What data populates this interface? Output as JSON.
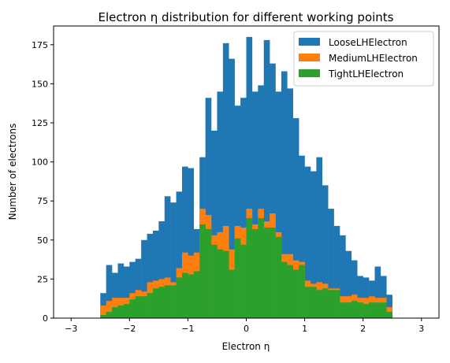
{
  "chart_data": {
    "type": "histogram",
    "title": "Electron η distribution for different working points",
    "xlabel": "Electron η",
    "ylabel": "Number of electrons",
    "xlim": [
      -3.3,
      3.3
    ],
    "ylim": [
      0,
      187
    ],
    "xticks": [
      -3,
      -2,
      -1,
      0,
      1,
      2,
      3
    ],
    "xtick_labels": [
      "−3",
      "−2",
      "−1",
      "0",
      "1",
      "2",
      "3"
    ],
    "yticks": [
      0,
      25,
      50,
      75,
      100,
      125,
      150,
      175
    ],
    "ytick_labels": [
      "0",
      "25",
      "50",
      "75",
      "100",
      "125",
      "150",
      "175"
    ],
    "grid": false,
    "legend_position": "top-right",
    "bin_start": -2.5,
    "bin_width": 0.1,
    "series": [
      {
        "name": "LooseLHElectron",
        "color": "#1f77b4",
        "values": [
          16,
          34,
          29,
          35,
          33,
          36,
          38,
          50,
          54,
          56,
          62,
          78,
          74,
          81,
          97,
          96,
          57,
          103,
          141,
          120,
          145,
          176,
          166,
          136,
          141,
          180,
          145,
          149,
          178,
          163,
          145,
          158,
          147,
          128,
          104,
          97,
          94,
          103,
          85,
          70,
          59,
          53,
          43,
          37,
          27,
          26,
          24,
          33,
          27,
          15
        ]
      },
      {
        "name": "MediumLHElectron",
        "color": "#ff7f0e",
        "values": [
          8,
          11,
          13,
          13,
          13,
          16,
          18,
          17,
          23,
          24,
          25,
          26,
          23,
          32,
          42,
          40,
          42,
          70,
          66,
          53,
          55,
          59,
          44,
          59,
          58,
          70,
          60,
          70,
          62,
          67,
          55,
          41,
          41,
          37,
          36,
          24,
          22,
          23,
          22,
          19,
          19,
          14,
          14,
          15,
          13,
          13,
          14,
          13,
          13,
          7
        ]
      },
      {
        "name": "TightLHElectron",
        "color": "#2ca02c",
        "values": [
          2,
          4,
          7,
          8,
          9,
          12,
          14,
          14,
          16,
          19,
          20,
          21,
          21,
          26,
          29,
          28,
          30,
          60,
          57,
          47,
          44,
          43,
          31,
          51,
          47,
          64,
          57,
          64,
          58,
          58,
          52,
          36,
          34,
          31,
          34,
          20,
          20,
          18,
          19,
          18,
          18,
          10,
          10,
          11,
          10,
          9,
          10,
          10,
          10,
          4
        ]
      }
    ]
  }
}
